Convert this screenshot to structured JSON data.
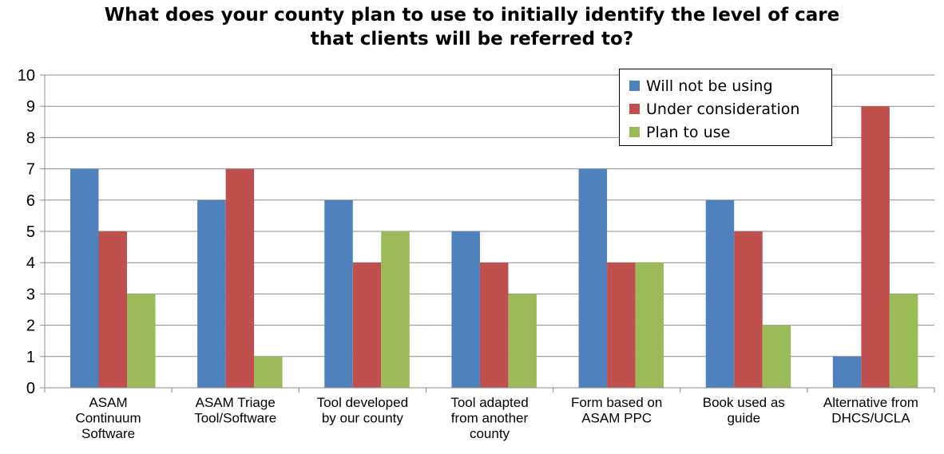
{
  "chart_data": {
    "type": "bar",
    "title_lines": [
      "What does your county plan to use to initially identify the level of care",
      "that clients will be referred to?"
    ],
    "categories": [
      [
        "ASAM",
        "Continuum",
        "Software"
      ],
      [
        "ASAM Triage",
        "Tool/Software"
      ],
      [
        "Tool developed",
        "by our county"
      ],
      [
        "Tool adapted",
        "from another",
        "county"
      ],
      [
        "Form based on",
        "ASAM PPC"
      ],
      [
        "Book used as",
        "guide"
      ],
      [
        "Alternative from",
        "DHCS/UCLA"
      ]
    ],
    "series": [
      {
        "name": "Will not be using",
        "color": "#4F81BD",
        "values": [
          7,
          6,
          6,
          5,
          7,
          6,
          1
        ]
      },
      {
        "name": "Under consideration",
        "color": "#C0504D",
        "values": [
          5,
          7,
          4,
          4,
          4,
          5,
          9
        ]
      },
      {
        "name": "Plan to use",
        "color": "#9BBB59",
        "values": [
          3,
          1,
          5,
          3,
          4,
          2,
          3
        ]
      }
    ],
    "ylim": [
      0,
      10
    ],
    "yticks": [
      0,
      1,
      2,
      3,
      4,
      5,
      6,
      7,
      8,
      9,
      10
    ],
    "grid": true,
    "legend_position": "top-right"
  }
}
